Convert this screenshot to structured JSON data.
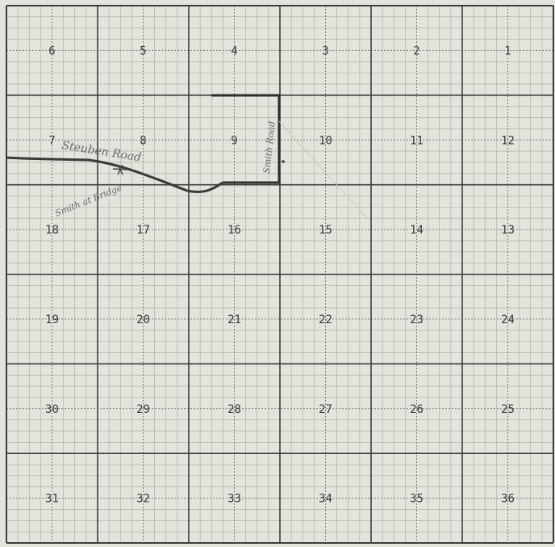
{
  "map": {
    "grid_cols": 6,
    "grid_rows": 6,
    "section_rows": [
      [
        "6",
        "5",
        "4",
        "3",
        "2",
        "1"
      ],
      [
        "7",
        "8",
        "9",
        "10",
        "11",
        "12"
      ],
      [
        "18",
        "17",
        "16",
        "15",
        "14",
        "13"
      ],
      [
        "19",
        "20",
        "21",
        "22",
        "23",
        "24"
      ],
      [
        "30",
        "29",
        "28",
        "27",
        "26",
        "25"
      ],
      [
        "31",
        "32",
        "33",
        "34",
        "35",
        "36"
      ]
    ],
    "annotations": {
      "road_label": "Steuben Road",
      "bridge_label": "Smith at Bridge",
      "vertical_road_label": "Smith Road"
    },
    "colors": {
      "paper": "#e4e3dc",
      "major_line": "#3e3e3a",
      "minor_line": "#a9a8a0",
      "dotted_line": "#7c7b74",
      "road": "#3a3a36",
      "handwriting": "#6a6a66",
      "section_number": "#3b3b36"
    }
  }
}
